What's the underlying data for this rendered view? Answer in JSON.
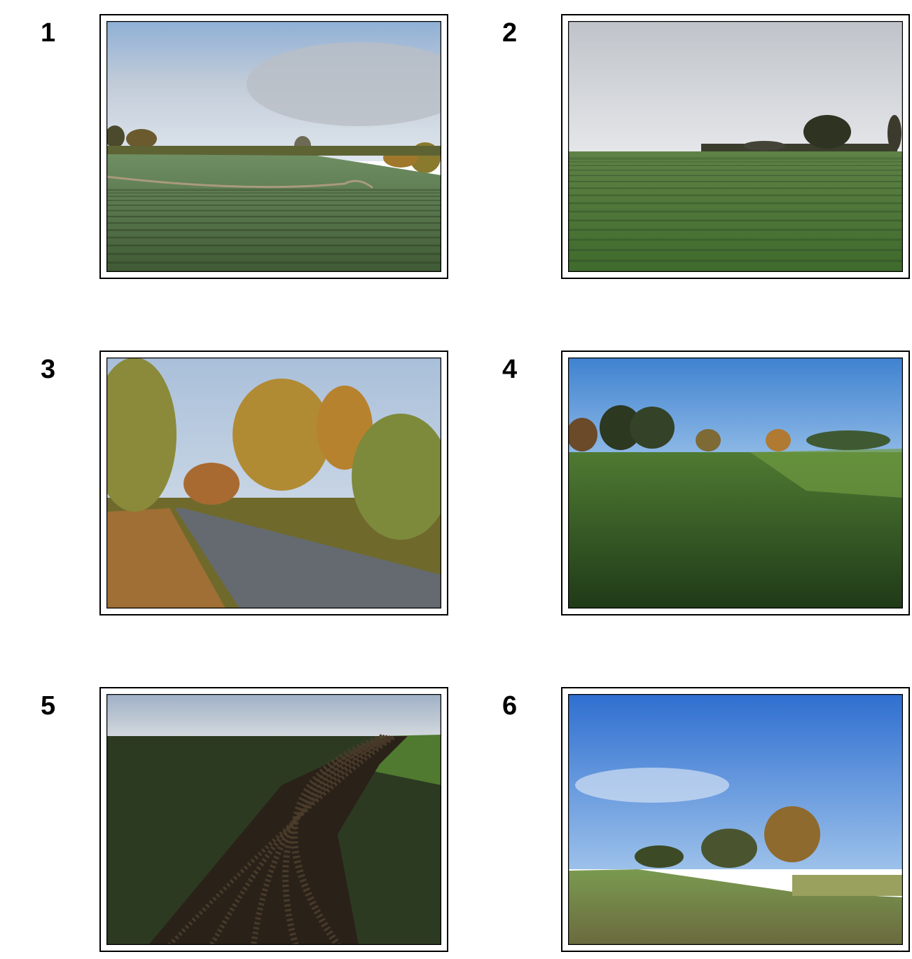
{
  "photos": [
    {
      "label": "1"
    },
    {
      "label": "2"
    },
    {
      "label": "3"
    },
    {
      "label": "4"
    },
    {
      "label": "5"
    },
    {
      "label": "6"
    }
  ]
}
